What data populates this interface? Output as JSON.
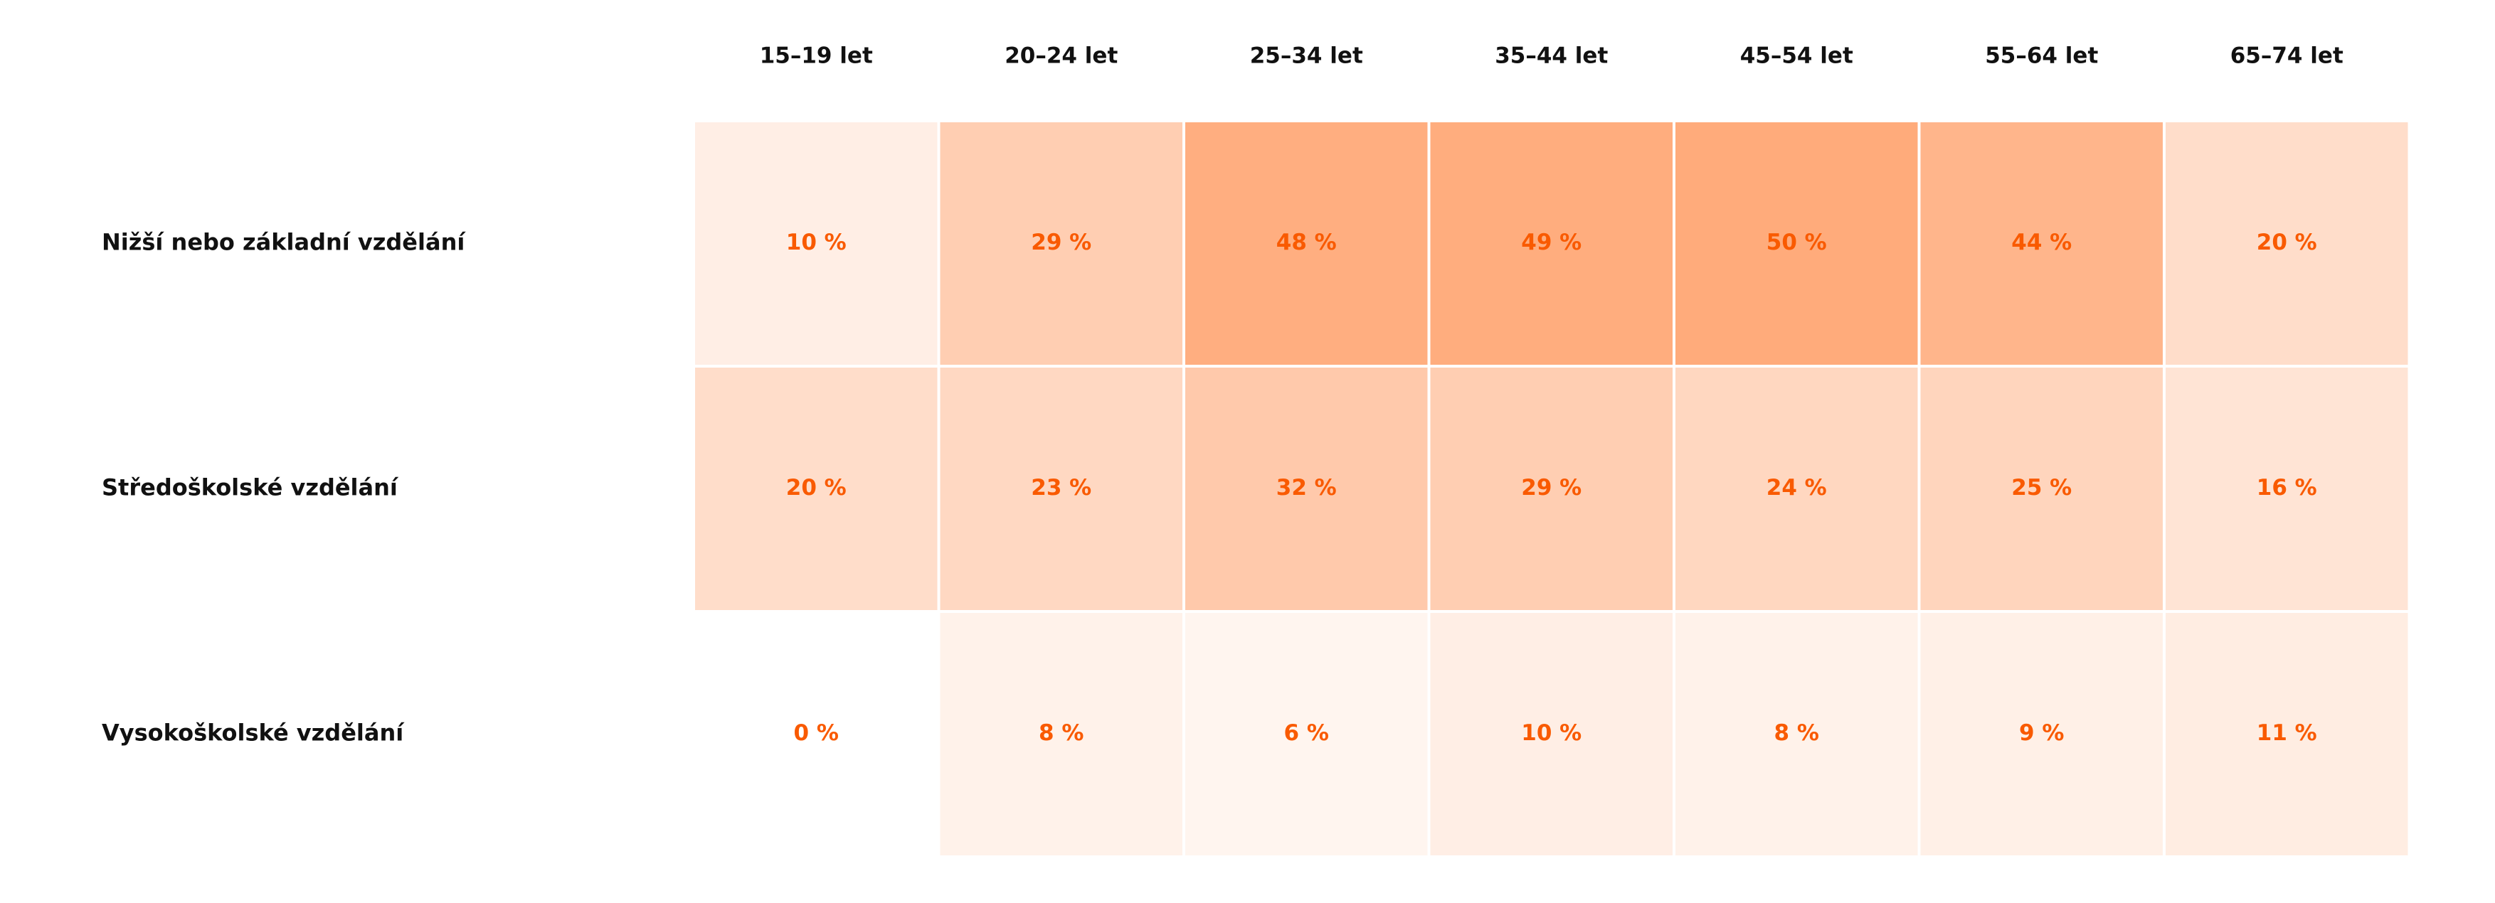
{
  "chart_data": {
    "type": "heatmap",
    "title": "",
    "xlabel": "",
    "ylabel": "",
    "columns": [
      "15–19 let",
      "20–24 let",
      "25–34 let",
      "35–44 let",
      "45–54 let",
      "55–64 let",
      "65–74 let"
    ],
    "rows": [
      "Nižší nebo základní vzdělání",
      "Středoškolské vzdělání",
      "Vysokoškolské vzdělání"
    ],
    "values": [
      [
        10,
        29,
        48,
        49,
        50,
        44,
        20
      ],
      [
        20,
        23,
        32,
        29,
        24,
        25,
        16
      ],
      [
        0,
        8,
        6,
        10,
        8,
        9,
        11
      ]
    ],
    "value_suffix": " %",
    "value_range": [
      0,
      50
    ],
    "colors": {
      "scale_low": "#ffffff",
      "scale_high": "#ffab7b",
      "value_text": "#f95a00",
      "axis_text": "#111111",
      "cell_border": "#ffffff"
    }
  }
}
